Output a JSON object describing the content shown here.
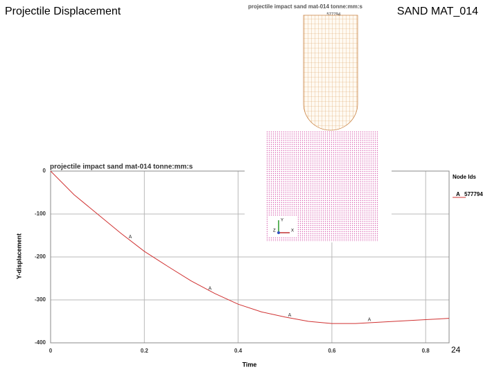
{
  "slide": {
    "title": "Projectile Displacement",
    "label": "SAND MAT_014",
    "page_number": "24"
  },
  "simulation": {
    "title": "projectile impact sand mat-014 tonne:mm:s",
    "node_label": "_577794",
    "triad": [
      "Y",
      "Z",
      "X"
    ]
  },
  "chart_data": {
    "type": "line",
    "title": "projectile impact sand mat-014 tonne:mm:s",
    "x_label": "Time",
    "y_label": "Y-displacement",
    "x": [
      0,
      0.05,
      0.1,
      0.15,
      0.2,
      0.25,
      0.3,
      0.35,
      0.4,
      0.45,
      0.5,
      0.55,
      0.6,
      0.65,
      0.7,
      0.75,
      0.8,
      0.85
    ],
    "series": [
      {
        "name": "577794",
        "symbol": "A",
        "color": "#d03030",
        "values": [
          0,
          -55,
          -100,
          -145,
          -187,
          -222,
          -256,
          -285,
          -310,
          -328,
          -340,
          -350,
          -355,
          -355,
          -352,
          -349,
          -346,
          -343
        ],
        "markers": {
          "x": [
            0.17,
            0.34,
            0.51,
            0.68
          ],
          "y": [
            -160,
            -280,
            -342,
            -353
          ]
        }
      }
    ],
    "legend_title": "Node Ids",
    "xlim": [
      0,
      0.85
    ],
    "ylim": [
      -400,
      0
    ],
    "xticks": [
      0,
      0.2,
      0.4,
      0.6,
      0.8
    ],
    "yticks": [
      0,
      -100,
      -200,
      -300,
      -400
    ],
    "grid": true
  }
}
